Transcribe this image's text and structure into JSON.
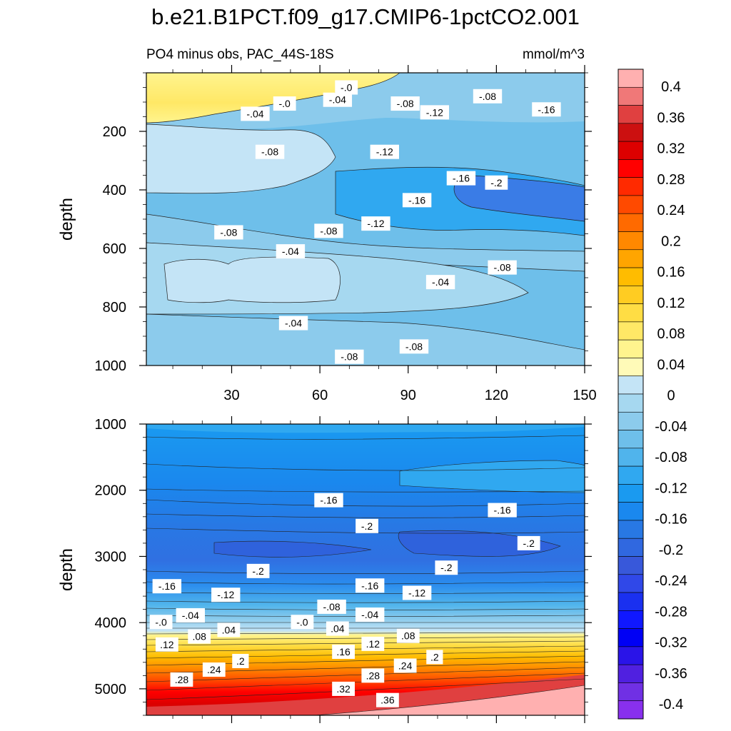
{
  "chart_data": {
    "type": "contour",
    "title": "b.e21.B1PCT.f09_g17.CMIP6-1pctCO2.001",
    "subtitle": "PO4 minus obs, PAC_44S-18S",
    "units": "mmol/m^3",
    "xlabel": "",
    "ylabel": "depth",
    "x_ticks": [
      "30",
      "60",
      "90",
      "120",
      "150"
    ],
    "xlim": [
      1,
      150
    ],
    "upper_panel": {
      "ylim": [
        0,
        1000
      ],
      "y_ticks": [
        "200",
        "400",
        "600",
        "800",
        "1000"
      ]
    },
    "lower_panel": {
      "ylim": [
        1000,
        5400
      ],
      "y_ticks": [
        "1000",
        "2000",
        "3000",
        "4000",
        "5000"
      ]
    },
    "colorbar": {
      "labels": [
        "0.4",
        "0.36",
        "0.32",
        "0.28",
        "0.24",
        "0.2",
        "0.16",
        "0.12",
        "0.08",
        "0.04",
        "0",
        "-0.04",
        "-0.08",
        "-0.12",
        "-0.16",
        "-0.2",
        "-0.24",
        "-0.28",
        "-0.32",
        "-0.36",
        "-0.4"
      ],
      "colors": [
        "#ffb0b0",
        "#f07878",
        "#e04040",
        "#cc1010",
        "#dd0000",
        "#ff0000",
        "#ff2a00",
        "#ff4a00",
        "#ff6a00",
        "#ff8800",
        "#ffa500",
        "#ffbc00",
        "#ffcc22",
        "#ffdd44",
        "#ffe866",
        "#fff48e",
        "#fffab8",
        "#c4e4f6",
        "#a6d8f0",
        "#8ccbec",
        "#6ebfea",
        "#50b4ec",
        "#30a8f0",
        "#1a9af0",
        "#1a88ee",
        "#2878e4",
        "#3068e0",
        "#3858da",
        "#3048e8",
        "#1a30f0",
        "#1018ff",
        "#0000f5",
        "#2a14e8",
        "#5020e0",
        "#7030e4",
        "#8830ee"
      ]
    },
    "upper_contour_labels": [
      {
        "text": "-.0",
        "x": 69,
        "y": 50
      },
      {
        "text": "-.08",
        "x": 117,
        "y": 80
      },
      {
        "text": "-.16",
        "x": 137,
        "y": 125
      },
      {
        "text": "-.0",
        "x": 48,
        "y": 105
      },
      {
        "text": "-.04",
        "x": 66,
        "y": 92
      },
      {
        "text": "-.08",
        "x": 89,
        "y": 105
      },
      {
        "text": "-.12",
        "x": 99,
        "y": 135
      },
      {
        "text": "-.04",
        "x": 38,
        "y": 140
      },
      {
        "text": "-.08",
        "x": 43,
        "y": 270
      },
      {
        "text": "-.12",
        "x": 82,
        "y": 270
      },
      {
        "text": "-.16",
        "x": 108,
        "y": 360
      },
      {
        "text": "-.2",
        "x": 120,
        "y": 375
      },
      {
        "text": "-.16",
        "x": 93,
        "y": 435
      },
      {
        "text": "-.12",
        "x": 79,
        "y": 515
      },
      {
        "text": "-.08",
        "x": 29,
        "y": 545
      },
      {
        "text": "-.08",
        "x": 63,
        "y": 540
      },
      {
        "text": "-.04",
        "x": 50,
        "y": 610
      },
      {
        "text": "-.08",
        "x": 122,
        "y": 665
      },
      {
        "text": "-.04",
        "x": 101,
        "y": 715
      },
      {
        "text": "-.04",
        "x": 51,
        "y": 855
      },
      {
        "text": "-.08",
        "x": 92,
        "y": 935
      },
      {
        "text": "-.08",
        "x": 70,
        "y": 970
      }
    ],
    "lower_contour_labels": [
      {
        "text": "-.16",
        "x": 63,
        "y": 2150
      },
      {
        "text": "-.16",
        "x": 122,
        "y": 2300
      },
      {
        "text": "-.2",
        "x": 76,
        "y": 2540
      },
      {
        "text": "-.2",
        "x": 131,
        "y": 2800
      },
      {
        "text": "-.2",
        "x": 39,
        "y": 3220
      },
      {
        "text": "-.2",
        "x": 103,
        "y": 3170
      },
      {
        "text": "-.16",
        "x": 8,
        "y": 3450
      },
      {
        "text": "-.12",
        "x": 28,
        "y": 3580
      },
      {
        "text": "-.16",
        "x": 77,
        "y": 3440
      },
      {
        "text": "-.12",
        "x": 93,
        "y": 3550
      },
      {
        "text": "-.08",
        "x": 64,
        "y": 3760
      },
      {
        "text": "-.04",
        "x": 16,
        "y": 3890
      },
      {
        "text": "-.04",
        "x": 77,
        "y": 3880
      },
      {
        "text": "-.0",
        "x": 6,
        "y": 3990
      },
      {
        "text": "-.0",
        "x": 54,
        "y": 3990
      },
      {
        "text": ".08",
        "x": 19,
        "y": 4210
      },
      {
        "text": ".04",
        "x": 29,
        "y": 4110
      },
      {
        "text": ".04",
        "x": 66,
        "y": 4090
      },
      {
        "text": ".12",
        "x": 8,
        "y": 4330
      },
      {
        "text": ".08",
        "x": 90,
        "y": 4200
      },
      {
        "text": ".16",
        "x": 68,
        "y": 4440
      },
      {
        "text": ".12",
        "x": 78,
        "y": 4320
      },
      {
        "text": ".2",
        "x": 33,
        "y": 4580
      },
      {
        "text": ".2",
        "x": 99,
        "y": 4520
      },
      {
        "text": ".24",
        "x": 24,
        "y": 4710
      },
      {
        "text": ".24",
        "x": 89,
        "y": 4650
      },
      {
        "text": ".28",
        "x": 13,
        "y": 4860
      },
      {
        "text": ".28",
        "x": 78,
        "y": 4800
      },
      {
        "text": ".32",
        "x": 68,
        "y": 5000
      },
      {
        "text": ".36",
        "x": 83,
        "y": 5170
      }
    ]
  }
}
